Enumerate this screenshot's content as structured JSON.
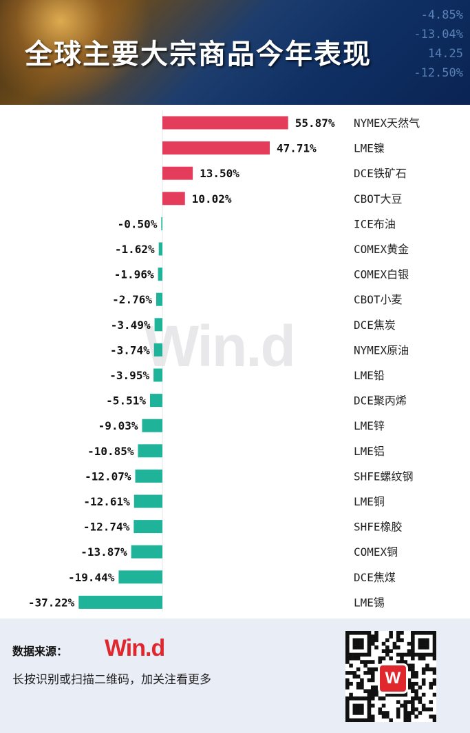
{
  "header": {
    "title": "全球主要大宗商品今年表现",
    "ticker": "-4.85%\n-13.04%\n14.25\n-12.50%"
  },
  "watermark": "Win.d",
  "footer": {
    "source_label": "数据来源：",
    "logo": "Win.d",
    "text": "长按识别或扫描二维码，加关注看更多",
    "qr_logo": "W"
  },
  "colors": {
    "positive": "#e33d5b",
    "negative": "#1fb39a"
  },
  "chart_data": {
    "type": "bar",
    "orientation": "horizontal",
    "categories": [
      "NYMEX天然气",
      "LME镍",
      "DCE铁矿石",
      "CBOT大豆",
      "ICE布油",
      "COMEX黄金",
      "COMEX白银",
      "CBOT小麦",
      "DCE焦炭",
      "NYMEX原油",
      "LME铅",
      "DCE聚丙烯",
      "LME锌",
      "LME铝",
      "SHFE螺纹钢",
      "LME铜",
      "SHFE橡胶",
      "COMEX铜",
      "DCE焦煤",
      "LME锡"
    ],
    "values": [
      55.87,
      47.71,
      13.5,
      10.02,
      -0.5,
      -1.62,
      -1.96,
      -2.76,
      -3.49,
      -3.74,
      -3.95,
      -5.51,
      -9.03,
      -10.85,
      -12.07,
      -12.61,
      -12.74,
      -13.87,
      -19.44,
      -37.22
    ],
    "labels": [
      "55.87%",
      "47.71%",
      "13.50%",
      "10.02%",
      "-0.50%",
      "-1.62%",
      "-1.96%",
      "-2.76%",
      "-3.49%",
      "-3.74%",
      "-3.95%",
      "-5.51%",
      "-9.03%",
      "-10.85%",
      "-12.07%",
      "-12.61%",
      "-12.74%",
      "-13.87%",
      "-19.44%",
      "-37.22%"
    ],
    "unit": "%",
    "grid": false,
    "legend": "none"
  }
}
